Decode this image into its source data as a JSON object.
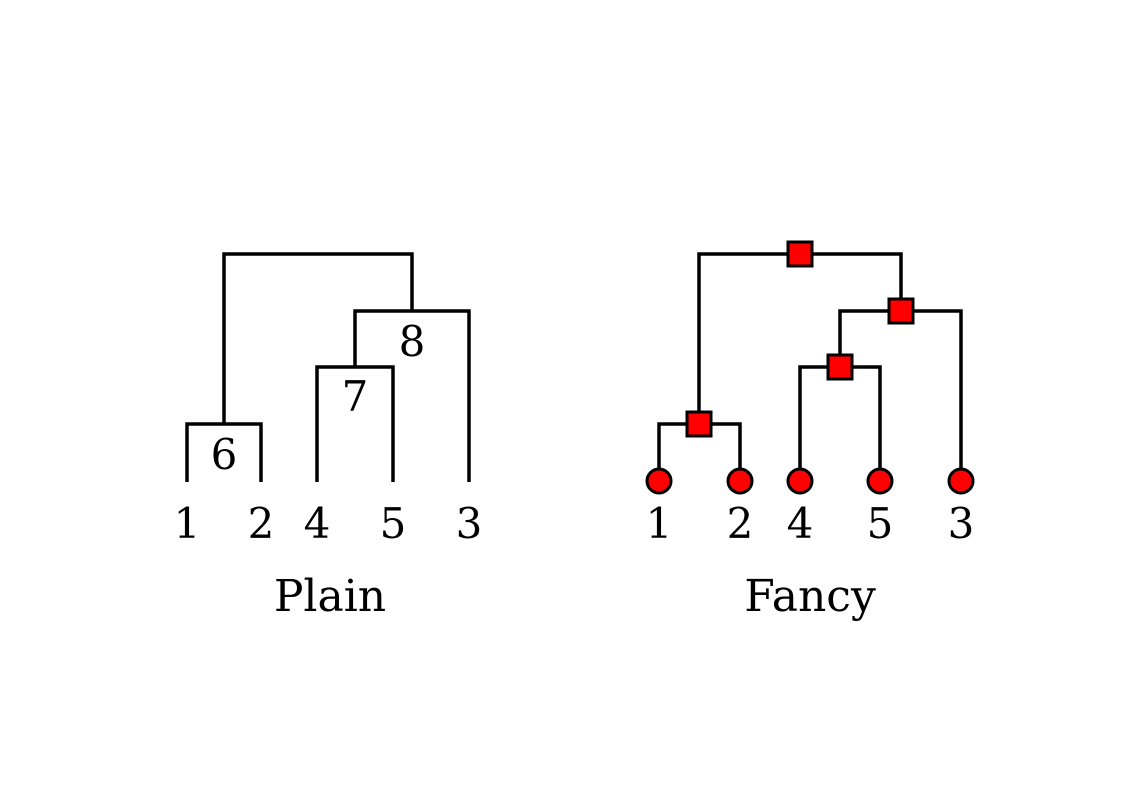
{
  "plain": {
    "caption": "Plain",
    "leaves": [
      "1",
      "2",
      "4",
      "5",
      "3"
    ],
    "internal_labels": [
      "6",
      "7",
      "8"
    ]
  },
  "fancy": {
    "caption": "Fancy",
    "leaves": [
      "1",
      "2",
      "4",
      "5",
      "3"
    ]
  },
  "colors": {
    "line": "#000000",
    "marker_fill": "#ff0000",
    "marker_stroke": "#000000"
  },
  "marker_shapes": {
    "leaf": "circle",
    "internal": "square"
  }
}
